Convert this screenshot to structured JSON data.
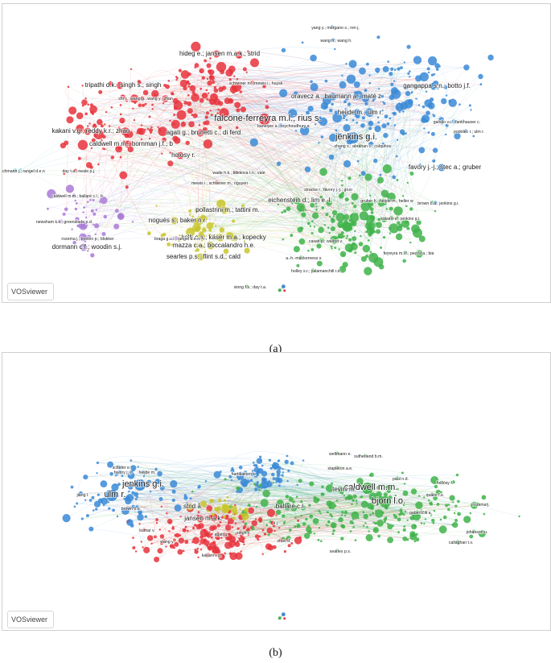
{
  "panel_a": {
    "caption": "(a)",
    "watermark": "VOSviewer",
    "colors": {
      "red": "#e8333c",
      "blue": "#3a8ad6",
      "green": "#3fb34a",
      "yellow": "#c8c52c",
      "purple": "#a97ad6",
      "cyan": "#25b7c4"
    },
    "labels": [
      {
        "text": "falcone-ferreyra m.l.; rius s.",
        "color": "red",
        "size": "l"
      },
      {
        "text": "jenkins g.i.",
        "color": "blue",
        "size": "l"
      },
      {
        "text": "tripathi d.k.; singh s.; singh",
        "color": "red",
        "size": "m"
      },
      {
        "text": "kakani v.g.; reddy k.r.; zhao",
        "color": "red",
        "size": "m"
      },
      {
        "text": "caldwell m.m.; bornman j.f.; b",
        "color": "red",
        "size": "m"
      },
      {
        "text": "holosy r.",
        "color": "red",
        "size": "m"
      },
      {
        "text": "agati g.; brunetti c.; di ferd",
        "color": "red",
        "size": "m"
      },
      {
        "text": "hideg e.; jansen m.a.k.; strid",
        "color": "red",
        "size": "m"
      },
      {
        "text": "oravecz a.; baumann a.; maté z",
        "color": "blue",
        "size": "m"
      },
      {
        "text": "gangappa s.n.; botto j.f.",
        "color": "blue",
        "size": "m"
      },
      {
        "text": "heijde m.; ulm r.",
        "color": "blue",
        "size": "m"
      },
      {
        "text": "banerjee a.; roychoudhury a.",
        "color": "blue",
        "size": "s"
      },
      {
        "text": "favory j.-j.; stec a.; gruber",
        "color": "blue",
        "size": "m"
      },
      {
        "text": "galvão v.c.; fankhauser c.",
        "color": "blue",
        "size": "s"
      },
      {
        "text": "brown b.a.; jenkins g.i.",
        "color": "blue",
        "size": "s"
      },
      {
        "text": "podolec r.; ulm r.",
        "color": "blue",
        "size": "s"
      },
      {
        "text": "zhang x.; abrahan c.; colquhou",
        "color": "green",
        "size": "s"
      },
      {
        "text": "stracke r.; favory j.-j.; gruo",
        "color": "green",
        "size": "s"
      },
      {
        "text": "casati p.; walbot v.",
        "color": "green",
        "size": "s"
      },
      {
        "text": "kaiserli e.; jenkins g.i.",
        "color": "green",
        "size": "s"
      },
      {
        "text": "a.-h.-mackerness s.",
        "color": "green",
        "size": "s"
      },
      {
        "text": "ferreyra m.l.f.; pezza a.; bia",
        "color": "green",
        "size": "s"
      },
      {
        "text": "holley s.r.; yalamanchili r.d.",
        "color": "green",
        "size": "s"
      },
      {
        "text": "pollastrini m.; tattini m.",
        "color": "yellow",
        "size": "m"
      },
      {
        "text": "eichenstein d.; lim e.-l.",
        "color": "green",
        "size": "m"
      },
      {
        "text": "nogués s.; baker n.r.",
        "color": "yellow",
        "size": "m"
      },
      {
        "text": "kolb c.a.; käser m.a.; kopecky",
        "color": "yellow",
        "size": "m"
      },
      {
        "text": "mazza c.a.; boccalandro h.e.",
        "color": "yellow",
        "size": "m"
      },
      {
        "text": "searles p.s.; flint s.d.; cald",
        "color": "yellow",
        "size": "m"
      },
      {
        "text": "dormann c.f.; woodin s.j.",
        "color": "purple",
        "size": "m"
      },
      {
        "text": "braga g.u.l.; rangel d.e.n.; r",
        "color": "purple",
        "size": "s"
      },
      {
        "text": "caldwell m.m.; ballaré c.l.; b",
        "color": "purple",
        "size": "s"
      },
      {
        "text": "day t.a.; neale p.j.",
        "color": "red",
        "size": "s"
      },
      {
        "text": "mewis i.; schreiner m.; nguyen",
        "color": "red",
        "size": "s"
      },
      {
        "text": "schreiner m.; mewis i.; huysk",
        "color": "red",
        "size": "s"
      },
      {
        "text": "wade h.k.; bibikova t.n.; vale",
        "color": "red",
        "size": "s"
      },
      {
        "text": "shi s.; wang g.; wang y.; zhan",
        "color": "red",
        "size": "s"
      },
      {
        "text": "jr.; bachmann j.; rangel d.e.n",
        "color": "cyan",
        "size": "s"
      },
      {
        "text": "xiong f.s.; day t.a.",
        "color": "green",
        "size": "s"
      },
      {
        "text": "rozema j.; boelen p.; blokker",
        "color": "purple",
        "size": "s"
      },
      {
        "text": "newsham k.k.; greenslade p.d.",
        "color": "purple",
        "size": "s"
      },
      {
        "text": "gruber h.; heijde m.; heller w",
        "color": "green",
        "size": "s"
      },
      {
        "text": "yang y.; morgano s.; ren j.",
        "color": "blue",
        "size": "s"
      },
      {
        "text": "wang h.; wang h.",
        "color": "blue",
        "size": "s"
      }
    ]
  },
  "panel_b": {
    "caption": "(b)",
    "watermark": "VOSviewer",
    "labels": [
      {
        "text": "jenkins g.i.",
        "color": "blue",
        "size": "l"
      },
      {
        "text": "ulm r.",
        "color": "blue",
        "size": "l"
      },
      {
        "text": "caldwell m.m.",
        "color": "green",
        "size": "l"
      },
      {
        "text": "bjorn l.o.",
        "color": "green",
        "size": "l"
      },
      {
        "text": "ballaré c.l.",
        "color": "green",
        "size": "m"
      },
      {
        "text": "tevini m.",
        "color": "green",
        "size": "m"
      },
      {
        "text": "strid å.",
        "color": "yellow",
        "size": "m"
      },
      {
        "text": "jansen m.a.k.",
        "color": "red",
        "size": "m"
      },
      {
        "text": "wang y.",
        "color": "red",
        "size": "s"
      },
      {
        "text": "callaghan t.v.",
        "color": "green",
        "size": "s"
      },
      {
        "text": "hartikainen k.",
        "color": "blue",
        "size": "s"
      },
      {
        "text": "jiang l.",
        "color": "blue",
        "size": "s"
      },
      {
        "text": "wellmann e.",
        "color": "green",
        "size": "s"
      },
      {
        "text": "sutherland b.m.",
        "color": "green",
        "size": "s"
      },
      {
        "text": "stapleton a.e.",
        "color": "green",
        "size": "s"
      },
      {
        "text": "favory j.-j.",
        "color": "blue",
        "size": "s"
      },
      {
        "text": "heijde m.",
        "color": "blue",
        "size": "s"
      },
      {
        "text": "agati g.",
        "color": "red",
        "size": "s"
      },
      {
        "text": "johanson u.",
        "color": "green",
        "size": "s"
      },
      {
        "text": "quaite f.e.",
        "color": "green",
        "size": "s"
      },
      {
        "text": "rozema j.",
        "color": "green",
        "size": "s"
      },
      {
        "text": "kakani v.g.",
        "color": "red",
        "size": "s"
      },
      {
        "text": "brown b.a.",
        "color": "blue",
        "size": "s"
      },
      {
        "text": "schäfer e.",
        "color": "blue",
        "size": "s"
      },
      {
        "text": "gaberščik a.",
        "color": "green",
        "size": "s"
      },
      {
        "text": "searles p.s.",
        "color": "green",
        "size": "s"
      },
      {
        "text": "kumar v.",
        "color": "red",
        "size": "s"
      },
      {
        "text": "singh s.",
        "color": "red",
        "size": "s"
      },
      {
        "text": "li j.",
        "color": "red",
        "size": "s"
      },
      {
        "text": "zhao d.",
        "color": "red",
        "size": "s"
      },
      {
        "text": "paul n.d.",
        "color": "green",
        "size": "s"
      },
      {
        "text": "hollósy f.",
        "color": "green",
        "size": "s"
      }
    ]
  }
}
